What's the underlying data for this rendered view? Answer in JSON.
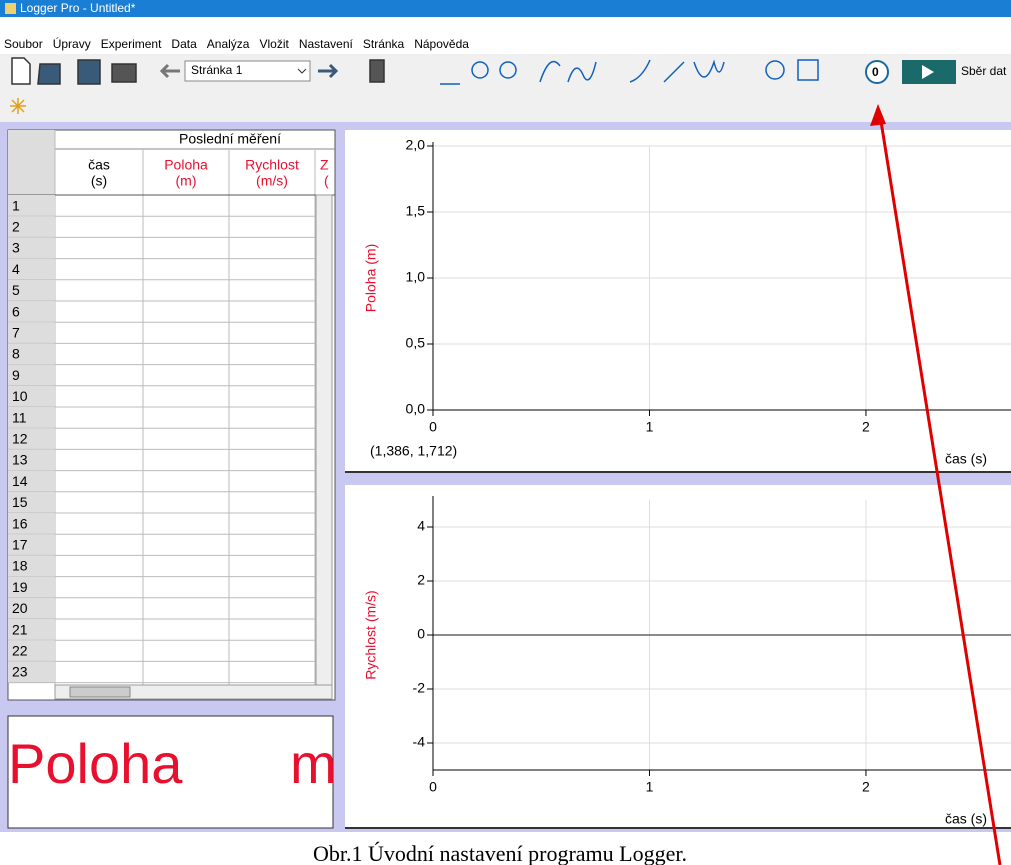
{
  "window": {
    "title": "Logger Pro - Untitled*"
  },
  "menu": [
    "Soubor",
    "Úpravy",
    "Experiment",
    "Data",
    "Analýza",
    "Vložit",
    "Nastavení",
    "Stránka",
    "Nápověda"
  ],
  "toolbar": {
    "page": "Stránka 1",
    "zero": "0",
    "collect": "Sběr dat"
  },
  "table": {
    "title": "Poslední měření",
    "columns": [
      {
        "name": "čas",
        "unit": "(s)"
      },
      {
        "name": "Poloha",
        "unit": "(m)"
      },
      {
        "name": "Rychlost",
        "unit": "(m/s)"
      },
      {
        "name": "Z",
        "unit": "("
      }
    ],
    "rows": [
      1,
      2,
      3,
      4,
      5,
      6,
      7,
      8,
      9,
      10,
      11,
      12,
      13,
      14,
      15,
      16,
      17,
      18,
      19,
      20,
      21,
      22,
      23
    ]
  },
  "meter": {
    "label": "Poloha",
    "unit": "m"
  },
  "graphs": [
    {
      "ylabel": "Poloha (m)",
      "xlabel": "čas (s)",
      "xlim": [
        0,
        2.67
      ],
      "ylim": [
        0,
        2
      ],
      "xticks": [
        0,
        1,
        2
      ],
      "yticks": [
        {
          "value": 0,
          "label": "0,0"
        },
        {
          "value": 0.5,
          "label": "0,5"
        },
        {
          "value": 1,
          "label": "1,0"
        },
        {
          "value": 1.5,
          "label": "1,5"
        },
        {
          "value": 2,
          "label": "2,0"
        }
      ],
      "readout": "(1,386, 1,712)"
    },
    {
      "ylabel": "Rychlost (m/s)",
      "xlabel": "čas (s)",
      "xlim": [
        0,
        2.67
      ],
      "ylim": [
        -5,
        5
      ],
      "xticks": [
        0,
        1,
        2
      ],
      "yticks": [
        -4,
        -2,
        0,
        2,
        4
      ]
    }
  ],
  "caption": "Obr.1 Úvodní nastavení programu Logger."
}
